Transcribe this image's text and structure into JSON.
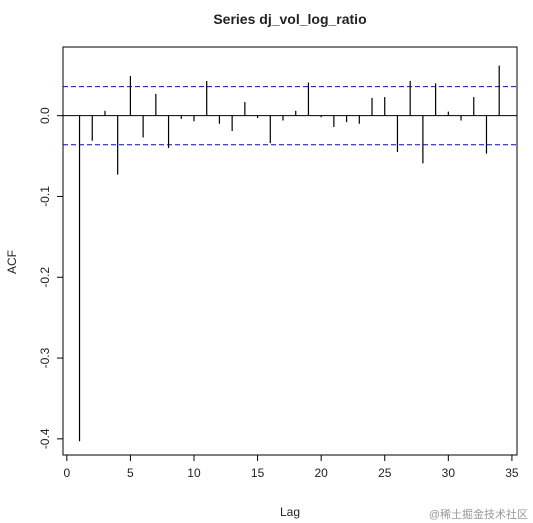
{
  "chart_data": {
    "type": "acf",
    "title": "Series dj_vol_log_ratio",
    "x_label": "Lag",
    "y_label": "ACF",
    "x": [
      1,
      2,
      3,
      4,
      5,
      6,
      7,
      8,
      9,
      10,
      11,
      12,
      13,
      14,
      15,
      16,
      17,
      18,
      19,
      20,
      21,
      22,
      23,
      24,
      25,
      26,
      27,
      28,
      29,
      30,
      31,
      32,
      33,
      34
    ],
    "values": [
      -0.403,
      -0.031,
      0.006,
      -0.073,
      0.049,
      -0.027,
      0.027,
      -0.04,
      -0.004,
      -0.007,
      0.043,
      -0.01,
      -0.019,
      0.017,
      -0.003,
      -0.034,
      -0.006,
      0.006,
      0.041,
      -0.002,
      -0.014,
      -0.008,
      -0.01,
      0.022,
      0.023,
      -0.045,
      0.043,
      -0.059,
      0.04,
      0.005,
      -0.006,
      0.023,
      -0.047,
      0.062
    ],
    "color": "#000000",
    "conf_limits": [
      0.036,
      -0.036
    ],
    "conf_color": "#0000ff",
    "xlim": [
      -0.3,
      35.4
    ],
    "ylim": [
      -0.42,
      0.085
    ],
    "xticks": [
      0,
      5,
      10,
      15,
      20,
      25,
      30,
      35
    ],
    "yticks": [
      -0.4,
      -0.3,
      -0.2,
      -0.1,
      {
        "value": 0,
        "label": "0.0"
      }
    ],
    "watermark": "@稀土掘金技术社区"
  }
}
